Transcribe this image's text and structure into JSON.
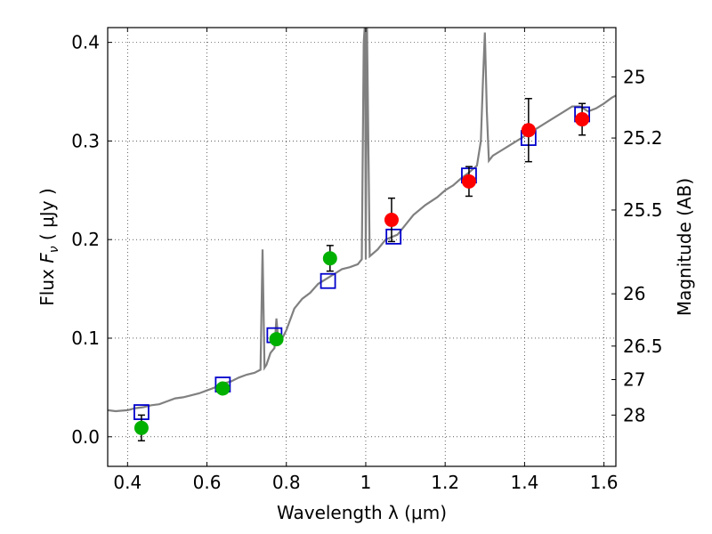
{
  "chart_data": {
    "type": "scatter",
    "xlabel": "Wavelength  λ (μm)",
    "ylabel": "Flux  F_ν  ( μJy )",
    "y2label": "Magnitude (AB)",
    "xlim": [
      0.35,
      1.63
    ],
    "ylim": [
      -0.03,
      0.415
    ],
    "grid": true,
    "x_ticks": [
      0.4,
      0.6,
      0.8,
      1.0,
      1.2,
      1.4,
      1.6
    ],
    "x_tick_labels": [
      "0.4",
      "0.6",
      "0.8",
      "1",
      "1.2",
      "1.4",
      "1.6"
    ],
    "y_ticks": [
      0.0,
      0.1,
      0.2,
      0.3,
      0.4
    ],
    "y_tick_labels": [
      "0.0",
      "0.1",
      "0.2",
      "0.3",
      "0.4"
    ],
    "y2_ticks": [
      {
        "label": "25",
        "flux": 0.365
      },
      {
        "label": "25.2",
        "flux": 0.303
      },
      {
        "label": "25.5",
        "flux": 0.23
      },
      {
        "label": "26",
        "flux": 0.145
      },
      {
        "label": "26.5",
        "flux": 0.092
      },
      {
        "label": "27",
        "flux": 0.058
      },
      {
        "label": "28",
        "flux": 0.022
      }
    ],
    "series": [
      {
        "type": "line",
        "color": "#808080",
        "x": [
          0.35,
          0.37,
          0.4,
          0.42,
          0.44,
          0.46,
          0.48,
          0.5,
          0.52,
          0.54,
          0.56,
          0.58,
          0.6,
          0.62,
          0.64,
          0.66,
          0.68,
          0.7,
          0.72,
          0.735,
          0.74,
          0.745,
          0.75,
          0.76,
          0.77,
          0.775,
          0.78,
          0.79,
          0.8,
          0.82,
          0.84,
          0.86,
          0.88,
          0.9,
          0.92,
          0.94,
          0.96,
          0.98,
          0.99,
          0.995,
          0.998,
          1.0,
          1.003,
          1.01,
          1.03,
          1.05,
          1.08,
          1.1,
          1.12,
          1.15,
          1.18,
          1.2,
          1.22,
          1.24,
          1.26,
          1.28,
          1.29,
          1.295,
          1.3,
          1.305,
          1.31,
          1.32,
          1.34,
          1.36,
          1.38,
          1.4,
          1.42,
          1.44,
          1.46,
          1.48,
          1.5,
          1.52,
          1.54,
          1.56,
          1.58,
          1.6,
          1.62,
          1.63
        ],
        "y": [
          0.027,
          0.026,
          0.027,
          0.029,
          0.03,
          0.032,
          0.033,
          0.036,
          0.039,
          0.04,
          0.042,
          0.044,
          0.047,
          0.05,
          0.054,
          0.056,
          0.06,
          0.063,
          0.065,
          0.068,
          0.19,
          0.07,
          0.073,
          0.085,
          0.09,
          0.12,
          0.096,
          0.1,
          0.108,
          0.13,
          0.14,
          0.146,
          0.155,
          0.16,
          0.165,
          0.17,
          0.172,
          0.175,
          0.18,
          0.4,
          0.42,
          0.18,
          0.42,
          0.183,
          0.19,
          0.2,
          0.205,
          0.215,
          0.225,
          0.235,
          0.243,
          0.25,
          0.255,
          0.262,
          0.268,
          0.275,
          0.3,
          0.36,
          0.41,
          0.33,
          0.28,
          0.285,
          0.29,
          0.295,
          0.3,
          0.305,
          0.31,
          0.315,
          0.32,
          0.325,
          0.33,
          0.335,
          0.335,
          0.33,
          0.333,
          0.338,
          0.344,
          0.346
        ]
      },
      {
        "type": "scatter",
        "marker": "square-open",
        "color": "#0000cc",
        "x": [
          0.435,
          0.64,
          0.77,
          0.905,
          1.07,
          1.26,
          1.41,
          1.545
        ],
        "y": [
          0.025,
          0.053,
          0.103,
          0.158,
          0.203,
          0.265,
          0.303,
          0.327
        ]
      },
      {
        "type": "scatter",
        "marker": "circle",
        "color": "#00b000",
        "x": [
          0.435,
          0.64,
          0.775,
          0.91
        ],
        "y": [
          0.009,
          0.049,
          0.099,
          0.181
        ],
        "err": [
          0.013,
          0.005,
          0.004,
          0.013
        ]
      },
      {
        "type": "scatter",
        "marker": "circle",
        "color": "#ff0000",
        "x": [
          1.065,
          1.26,
          1.41,
          1.545
        ],
        "y": [
          0.22,
          0.259,
          0.311,
          0.322
        ],
        "err": [
          0.022,
          0.015,
          0.032,
          0.016
        ]
      }
    ]
  }
}
